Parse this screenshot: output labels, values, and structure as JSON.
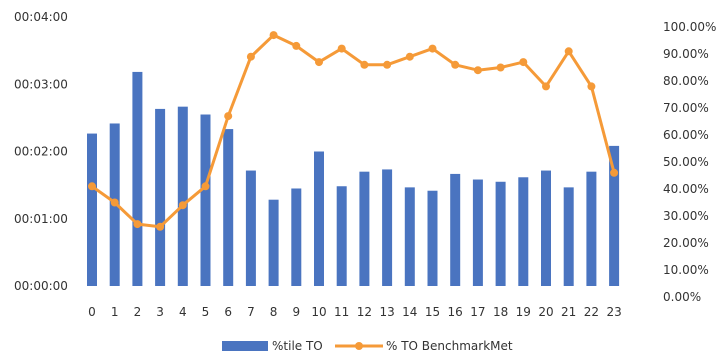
{
  "chart_data": {
    "type": "bar",
    "categories": [
      "0",
      "1",
      "2",
      "3",
      "4",
      "5",
      "6",
      "7",
      "8",
      "9",
      "10",
      "11",
      "12",
      "13",
      "14",
      "15",
      "16",
      "17",
      "18",
      "19",
      "20",
      "21",
      "22",
      "23"
    ],
    "series": [
      {
        "name": "%tile TO",
        "chart_type": "bar",
        "axis": "left",
        "color": "#4a74c0",
        "values_seconds": [
          136,
          145,
          191,
          158,
          160,
          153,
          140,
          103,
          77,
          87,
          120,
          89,
          102,
          104,
          88,
          85,
          100,
          95,
          93,
          97,
          103,
          88,
          102,
          125
        ]
      },
      {
        "name": "% TO BenchmarkMet",
        "chart_type": "line",
        "axis": "right",
        "color": "#f59a38",
        "values_percent": [
          41,
          35,
          27,
          26,
          34,
          41,
          67,
          89,
          97,
          93,
          87,
          92,
          86,
          86,
          89,
          92,
          86,
          84,
          85,
          87,
          78,
          91,
          78,
          46
        ]
      }
    ],
    "left_axis": {
      "ticks": [
        "00:00:00",
        "00:01:00",
        "00:02:00",
        "00:03:00",
        "00:04:00"
      ],
      "range_seconds": [
        0,
        240
      ]
    },
    "right_axis": {
      "ticks": [
        "0.00%",
        "10.00%",
        "20.00%",
        "30.00%",
        "40.00%",
        "50.00%",
        "60.00%",
        "70.00%",
        "80.00%",
        "90.00%",
        "100.00%"
      ],
      "range_percent": [
        0,
        100
      ]
    },
    "legend": {
      "position": "bottom",
      "items": [
        {
          "label": "%tile TO",
          "color": "#4a74c0",
          "kind": "bar"
        },
        {
          "label": "% TO BenchmarkMet",
          "color": "#f59a38",
          "kind": "line"
        }
      ]
    },
    "grid": false
  }
}
